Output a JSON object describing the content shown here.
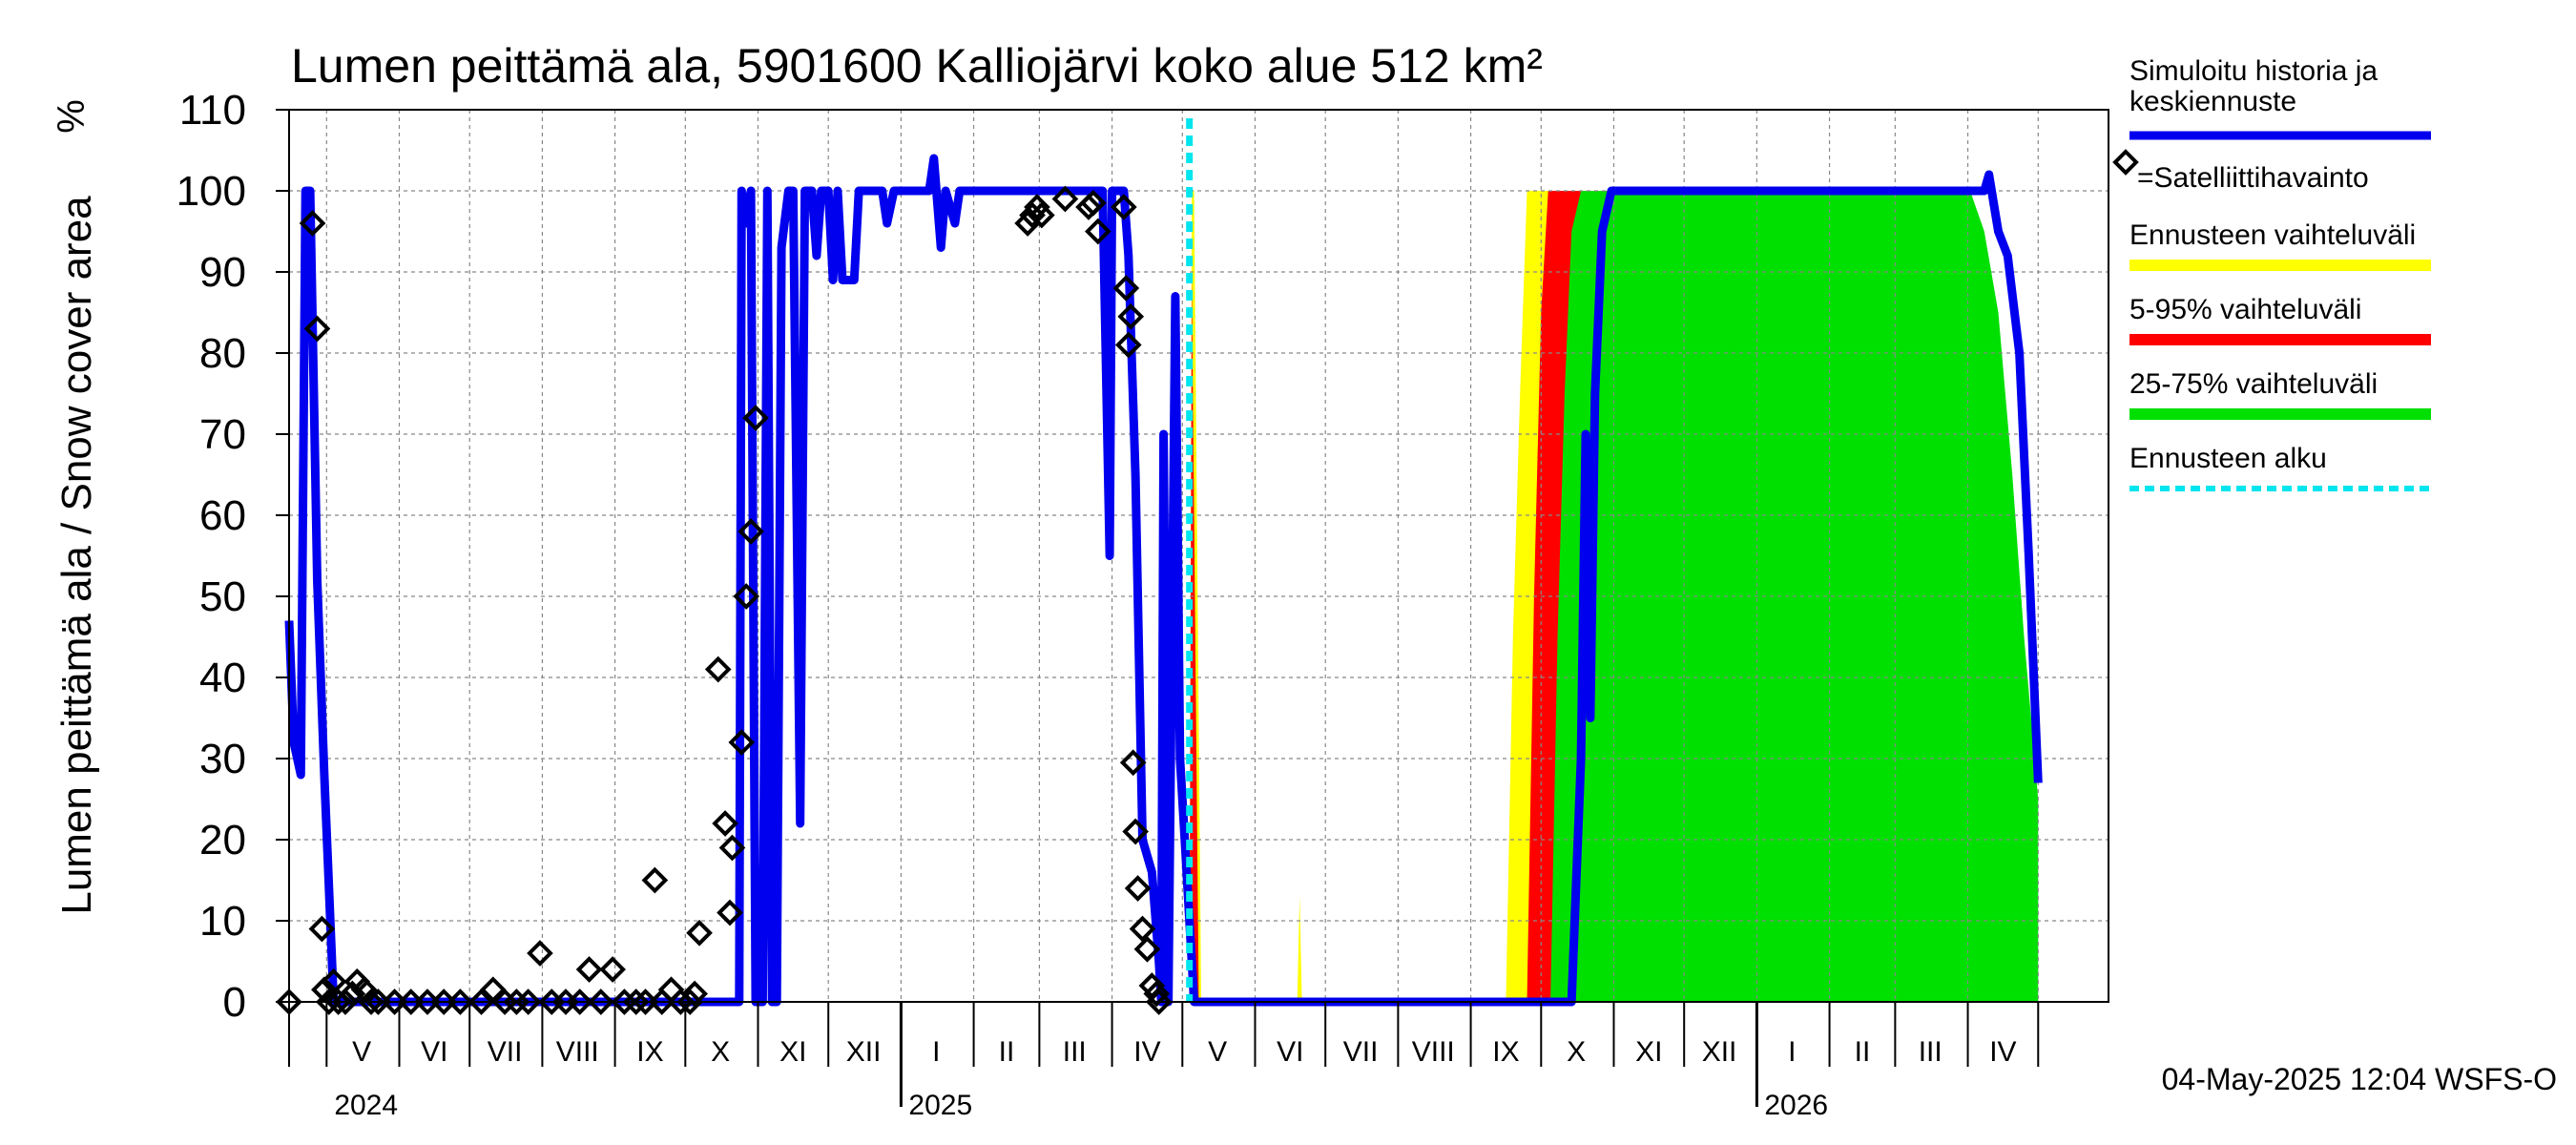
{
  "chart_data": {
    "type": "area",
    "title": "Lumen peittämä ala, 5901600 Kalliojärvi koko alue 512 km²",
    "y_unit": "%",
    "ylabel": "Lumen peittämä ala / Snow cover area",
    "ylim": [
      0,
      110
    ],
    "y_ticks": [
      "0",
      "10",
      "20",
      "30",
      "40",
      "50",
      "60",
      "70",
      "80",
      "90",
      "100",
      "110"
    ],
    "xlim": [
      "2024-04-15",
      "2026-05-31"
    ],
    "month_labels": [
      {
        "label": "V",
        "date": "2024-05-16"
      },
      {
        "label": "VI",
        "date": "2024-06-16"
      },
      {
        "label": "VII",
        "date": "2024-07-16"
      },
      {
        "label": "VIII",
        "date": "2024-08-16"
      },
      {
        "label": "IX",
        "date": "2024-09-16"
      },
      {
        "label": "X",
        "date": "2024-10-16"
      },
      {
        "label": "XI",
        "date": "2024-11-16"
      },
      {
        "label": "XII",
        "date": "2024-12-16"
      },
      {
        "label": "I",
        "date": "2025-01-16"
      },
      {
        "label": "II",
        "date": "2025-02-15"
      },
      {
        "label": "III",
        "date": "2025-03-16"
      },
      {
        "label": "IV",
        "date": "2025-04-16"
      },
      {
        "label": "V",
        "date": "2025-05-16"
      },
      {
        "label": "VI",
        "date": "2025-06-16"
      },
      {
        "label": "VII",
        "date": "2025-07-16"
      },
      {
        "label": "VIII",
        "date": "2025-08-16"
      },
      {
        "label": "IX",
        "date": "2025-09-16"
      },
      {
        "label": "X",
        "date": "2025-10-16"
      },
      {
        "label": "XI",
        "date": "2025-11-16"
      },
      {
        "label": "XII",
        "date": "2025-12-16"
      },
      {
        "label": "I",
        "date": "2026-01-16"
      },
      {
        "label": "II",
        "date": "2026-02-15"
      },
      {
        "label": "III",
        "date": "2026-03-16"
      },
      {
        "label": "IV",
        "date": "2026-04-16"
      }
    ],
    "year_labels": [
      {
        "label": "2024",
        "date": "2024-05-01"
      },
      {
        "label": "2025",
        "date": "2025-01-01"
      },
      {
        "label": "2026",
        "date": "2026-01-01"
      }
    ],
    "grid": true,
    "legend_position": "right",
    "legend": [
      {
        "label": "Simuloitu historia ja keskiennuste",
        "color": "#0000ee",
        "style": "line"
      },
      {
        "label": "=Satelliittihavainto",
        "color": "#000000",
        "style": "diamond"
      },
      {
        "label": "Ennusteen vaihteluväli",
        "color": "#ffff00",
        "style": "band"
      },
      {
        "label": "5-95% vaihteluväli",
        "color": "#ff0000",
        "style": "band"
      },
      {
        "label": "25-75% vaihteluväli",
        "color": "#00e000",
        "style": "band"
      },
      {
        "label": "Ennusteen alku",
        "color": "#00e5ee",
        "style": "dashed"
      }
    ],
    "forecast_start": "2025-05-04",
    "timestamp": "04-May-2025 12:04 WSFS-O",
    "series": [
      {
        "name": "Simuloitu historia ja keskiennuste",
        "color": "#0000ee",
        "points": [
          [
            "2024-04-15",
            47
          ],
          [
            "2024-04-17",
            32
          ],
          [
            "2024-04-20",
            28
          ],
          [
            "2024-04-22",
            100
          ],
          [
            "2024-04-24",
            100
          ],
          [
            "2024-04-27",
            52
          ],
          [
            "2024-04-30",
            28
          ],
          [
            "2024-05-04",
            0
          ],
          [
            "2024-10-24",
            0
          ],
          [
            "2024-10-25",
            100
          ],
          [
            "2024-10-27",
            96
          ],
          [
            "2024-10-29",
            100
          ],
          [
            "2024-10-31",
            0
          ],
          [
            "2024-11-03",
            0
          ],
          [
            "2024-11-05",
            100
          ],
          [
            "2024-11-07",
            0
          ],
          [
            "2024-11-09",
            0
          ],
          [
            "2024-11-11",
            93
          ],
          [
            "2024-11-14",
            100
          ],
          [
            "2024-11-16",
            100
          ],
          [
            "2024-11-19",
            22
          ],
          [
            "2024-11-21",
            100
          ],
          [
            "2024-11-24",
            100
          ],
          [
            "2024-11-26",
            92
          ],
          [
            "2024-11-28",
            100
          ],
          [
            "2024-12-01",
            100
          ],
          [
            "2024-12-03",
            89
          ],
          [
            "2024-12-05",
            100
          ],
          [
            "2024-12-07",
            89
          ],
          [
            "2024-12-12",
            89
          ],
          [
            "2024-12-14",
            100
          ],
          [
            "2024-12-24",
            100
          ],
          [
            "2024-12-26",
            96
          ],
          [
            "2024-12-29",
            100
          ],
          [
            "2025-01-13",
            100
          ],
          [
            "2025-01-15",
            104
          ],
          [
            "2025-01-18",
            93
          ],
          [
            "2025-01-20",
            100
          ],
          [
            "2025-01-24",
            96
          ],
          [
            "2025-01-26",
            100
          ],
          [
            "2025-03-28",
            100
          ],
          [
            "2025-03-31",
            55
          ],
          [
            "2025-04-01",
            100
          ],
          [
            "2025-04-06",
            100
          ],
          [
            "2025-04-08",
            92
          ],
          [
            "2025-04-11",
            65
          ],
          [
            "2025-04-14",
            20
          ],
          [
            "2025-04-18",
            16
          ],
          [
            "2025-04-21",
            5
          ],
          [
            "2025-04-22",
            0
          ],
          [
            "2025-04-23",
            70
          ],
          [
            "2025-04-25",
            0
          ],
          [
            "2025-04-28",
            87
          ],
          [
            "2025-04-30",
            30
          ],
          [
            "2025-05-02",
            20
          ],
          [
            "2025-05-06",
            0
          ],
          [
            "2025-10-14",
            0
          ],
          [
            "2025-10-18",
            30
          ],
          [
            "2025-10-20",
            70
          ],
          [
            "2025-10-22",
            35
          ],
          [
            "2025-10-24",
            75
          ],
          [
            "2025-10-27",
            95
          ],
          [
            "2025-10-31",
            100
          ],
          [
            "2026-04-08",
            100
          ],
          [
            "2026-04-10",
            102
          ],
          [
            "2026-04-14",
            95
          ],
          [
            "2026-04-18",
            92
          ],
          [
            "2026-04-23",
            80
          ],
          [
            "2026-04-27",
            55
          ],
          [
            "2026-05-01",
            27
          ]
        ]
      },
      {
        "name": "Ennusteen vaihteluväli",
        "color": "#ffff00",
        "points": [
          [
            "2025-05-04",
            0
          ],
          [
            "2025-05-05",
            100
          ],
          [
            "2025-05-06",
            100
          ],
          [
            "2025-05-09",
            0
          ],
          [
            "2025-06-19",
            0
          ],
          [
            "2025-06-20",
            13
          ],
          [
            "2025-06-21",
            0
          ],
          [
            "2025-09-16",
            0
          ],
          [
            "2025-09-19",
            45
          ],
          [
            "2025-09-22",
            75
          ],
          [
            "2025-09-25",
            100
          ],
          [
            "2026-03-15",
            100
          ],
          [
            "2026-03-22",
            100
          ],
          [
            "2026-03-29",
            60
          ],
          [
            "2026-04-05",
            40
          ],
          [
            "2026-04-12",
            15
          ],
          [
            "2026-04-18",
            0
          ],
          [
            "2026-05-31",
            0
          ]
        ]
      },
      {
        "name": "5-95% vaihteluväli",
        "color": "#ff0000",
        "points": [
          [
            "2025-05-04",
            0
          ],
          [
            "2025-05-05",
            90
          ],
          [
            "2025-05-06",
            60
          ],
          [
            "2025-05-08",
            0
          ],
          [
            "2025-09-25",
            0
          ],
          [
            "2025-09-28",
            50
          ],
          [
            "2025-10-01",
            85
          ],
          [
            "2025-10-04",
            100
          ],
          [
            "2026-03-28",
            100
          ],
          [
            "2026-04-04",
            85
          ],
          [
            "2026-04-10",
            60
          ],
          [
            "2026-04-16",
            30
          ],
          [
            "2026-04-22",
            5
          ],
          [
            "2026-04-25",
            0
          ],
          [
            "2026-05-31",
            0
          ]
        ]
      },
      {
        "name": "25-75% vaihteluväli",
        "color": "#00e000",
        "points": [
          [
            "2025-10-05",
            0
          ],
          [
            "2025-10-08",
            45
          ],
          [
            "2025-10-11",
            75
          ],
          [
            "2025-10-14",
            95
          ],
          [
            "2025-10-18",
            100
          ],
          [
            "2026-04-02",
            100
          ],
          [
            "2026-04-08",
            95
          ],
          [
            "2026-04-14",
            85
          ],
          [
            "2026-04-20",
            65
          ],
          [
            "2026-04-25",
            45
          ],
          [
            "2026-05-01",
            25
          ]
        ]
      },
      {
        "name": "Satelliittihavainto",
        "color": "#000000",
        "points": [
          [
            "2024-04-15",
            0
          ],
          [
            "2024-04-25",
            96
          ],
          [
            "2024-04-27",
            83
          ],
          [
            "2024-04-29",
            9
          ],
          [
            "2024-04-30",
            1.5
          ],
          [
            "2024-05-02",
            0
          ],
          [
            "2024-05-04",
            2.5
          ],
          [
            "2024-05-06",
            0
          ],
          [
            "2024-05-09",
            0
          ],
          [
            "2024-05-12",
            1
          ],
          [
            "2024-05-14",
            2.5
          ],
          [
            "2024-05-17",
            1.5
          ],
          [
            "2024-05-20",
            0
          ],
          [
            "2024-05-23",
            0
          ],
          [
            "2024-05-30",
            0
          ],
          [
            "2024-06-06",
            0
          ],
          [
            "2024-06-13",
            0
          ],
          [
            "2024-06-20",
            0
          ],
          [
            "2024-06-27",
            0
          ],
          [
            "2024-07-06",
            0
          ],
          [
            "2024-07-11",
            1.5
          ],
          [
            "2024-07-16",
            0
          ],
          [
            "2024-07-21",
            0
          ],
          [
            "2024-07-26",
            0
          ],
          [
            "2024-07-31",
            6
          ],
          [
            "2024-08-05",
            0
          ],
          [
            "2024-08-11",
            0
          ],
          [
            "2024-08-17",
            0
          ],
          [
            "2024-08-21",
            4
          ],
          [
            "2024-08-26",
            0
          ],
          [
            "2024-08-31",
            4
          ],
          [
            "2024-09-05",
            0
          ],
          [
            "2024-09-10",
            0
          ],
          [
            "2024-09-14",
            0
          ],
          [
            "2024-09-18",
            15
          ],
          [
            "2024-09-21",
            0
          ],
          [
            "2024-09-25",
            1.5
          ],
          [
            "2024-09-29",
            0
          ],
          [
            "2024-10-03",
            0
          ],
          [
            "2024-10-05",
            1
          ],
          [
            "2024-10-07",
            8.5
          ],
          [
            "2024-10-15",
            41
          ],
          [
            "2024-10-18",
            22
          ],
          [
            "2024-10-20",
            11
          ],
          [
            "2024-10-21",
            19
          ],
          [
            "2024-10-25",
            32
          ],
          [
            "2024-10-27",
            50
          ],
          [
            "2024-10-29",
            58
          ],
          [
            "2024-10-31",
            72
          ],
          [
            "2025-02-24",
            96
          ],
          [
            "2025-02-26",
            97
          ],
          [
            "2025-02-28",
            98
          ],
          [
            "2025-03-02",
            97
          ],
          [
            "2025-03-12",
            99
          ],
          [
            "2025-03-22",
            98
          ],
          [
            "2025-03-24",
            98.5
          ],
          [
            "2025-03-26",
            95
          ],
          [
            "2025-04-06",
            98
          ],
          [
            "2025-04-07",
            88
          ],
          [
            "2025-04-08",
            81
          ],
          [
            "2025-04-09",
            84.5
          ],
          [
            "2025-04-10",
            29.5
          ],
          [
            "2025-04-11",
            21
          ],
          [
            "2025-04-12",
            14
          ],
          [
            "2025-04-14",
            9
          ],
          [
            "2025-04-16",
            6.5
          ],
          [
            "2025-04-18",
            2
          ],
          [
            "2025-04-20",
            1
          ],
          [
            "2025-04-21",
            0
          ]
        ]
      }
    ]
  }
}
